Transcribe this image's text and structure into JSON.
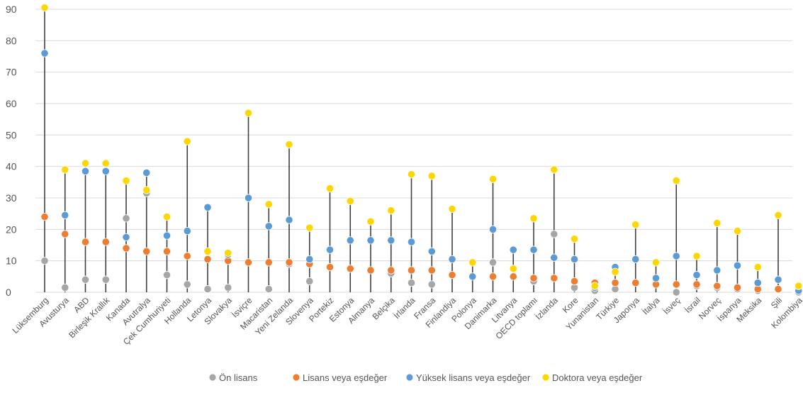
{
  "chart_data": {
    "type": "scatter",
    "title": "",
    "xlabel": "",
    "ylabel": "",
    "ylim": [
      0,
      90
    ],
    "yticks": [
      0,
      10,
      20,
      30,
      40,
      50,
      60,
      70,
      80,
      90
    ],
    "grid": true,
    "legend_position": "bottom",
    "categories": [
      "Lüksemburg",
      "Avusturya",
      "ABD",
      "Birleşik Krallık",
      "Kanada",
      "Avutralya",
      "Çek Cumhuriyeti",
      "Hollanda",
      "Letonya",
      "Slovakya",
      "İsviçre",
      "Macaristan",
      "Yeni Zelanda",
      "Slovenya",
      "Portekiz",
      "Estonya",
      "Almanya",
      "Belçika",
      "İrlanda",
      "Fransa",
      "Finlandiya",
      "Polonya",
      "Danimarka",
      "Litvanya",
      "OECD toplamı",
      "İzlanda",
      "Kore",
      "Yunanistan",
      "Türkiye",
      "Japonya",
      "İtalya",
      "İsveç",
      "İsrail",
      "Norveç",
      "İspanya",
      "Meksika",
      "Şili",
      "Kolombiya"
    ],
    "series": [
      {
        "name": "Ön lisans",
        "color": "#a6a6a6",
        "values": [
          10,
          1.5,
          4,
          4,
          23.5,
          31.5,
          5.5,
          2.5,
          1,
          1.5,
          null,
          1,
          9,
          3.5,
          null,
          null,
          null,
          6,
          3,
          2.5,
          null,
          null,
          9.5,
          null,
          3.5,
          18.5,
          1.5,
          0.5,
          1,
          null,
          null,
          0,
          2,
          1.5,
          1,
          0.5,
          1,
          0
        ]
      },
      {
        "name": "Lisans veya eşdeğer",
        "color": "#ed7d31",
        "values": [
          24,
          18.5,
          16,
          16,
          14,
          13,
          13,
          11.5,
          10.5,
          10,
          9.5,
          9.5,
          9.5,
          9,
          8,
          7.5,
          7,
          7,
          7,
          7,
          5.5,
          null,
          5,
          5,
          4.5,
          4.5,
          3.5,
          3,
          3,
          3,
          2.5,
          2.5,
          2.5,
          2,
          1.5,
          1,
          1,
          null
        ]
      },
      {
        "name": "Yüksek lisans veya eşdeğer",
        "color": "#5b9bd5",
        "values": [
          76,
          24.5,
          38.5,
          38.5,
          17.5,
          38,
          18,
          19.5,
          27,
          12,
          30,
          21,
          23,
          10.5,
          13.5,
          16.5,
          16.5,
          16.5,
          16,
          13,
          10.5,
          5,
          20,
          13.5,
          13.5,
          11,
          10.5,
          1.5,
          8,
          10.5,
          4.5,
          11.5,
          5.5,
          7,
          8.5,
          3,
          4,
          0.5
        ]
      },
      {
        "name": "Doktora veya eşdeğer",
        "color": "#ffd700",
        "values": [
          90.5,
          39,
          41,
          41,
          35.5,
          32.5,
          24,
          48,
          13,
          12.5,
          57,
          28,
          47,
          20.5,
          33,
          29,
          22.5,
          26,
          37.5,
          37,
          26.5,
          9.5,
          36,
          7.5,
          23.5,
          39,
          17,
          2,
          6.5,
          21.5,
          9.5,
          35.5,
          11.5,
          22,
          19.5,
          8,
          24.5,
          2
        ]
      }
    ]
  }
}
